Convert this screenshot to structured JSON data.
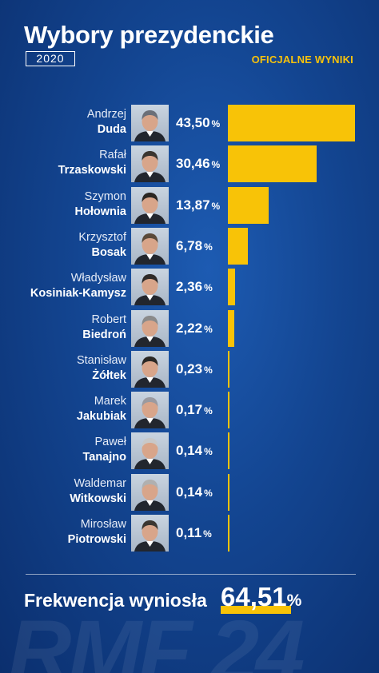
{
  "header": {
    "title": "Wybory prezydenckie",
    "year": "2020",
    "subtitle": "OFICJALNE WYNIKI"
  },
  "chart_data": {
    "type": "bar",
    "orientation": "horizontal",
    "unit": "%",
    "bar_color": "#f8c307",
    "xlim": [
      0,
      43.5
    ],
    "categories": [
      {
        "first": "Andrzej",
        "last": "Duda",
        "value": 43.5,
        "label": "43,50"
      },
      {
        "first": "Rafał",
        "last": "Trzaskowski",
        "value": 30.46,
        "label": "30,46"
      },
      {
        "first": "Szymon",
        "last": "Hołownia",
        "value": 13.87,
        "label": "13,87"
      },
      {
        "first": "Krzysztof",
        "last": "Bosak",
        "value": 6.78,
        "label": "6,78"
      },
      {
        "first": "Władysław",
        "last": "Kosiniak-Kamysz",
        "value": 2.36,
        "label": "2,36"
      },
      {
        "first": "Robert",
        "last": "Biedroń",
        "value": 2.22,
        "label": "2,22"
      },
      {
        "first": "Stanisław",
        "last": "Żółtek",
        "value": 0.23,
        "label": "0,23"
      },
      {
        "first": "Marek",
        "last": "Jakubiak",
        "value": 0.17,
        "label": "0,17"
      },
      {
        "first": "Paweł",
        "last": "Tanajno",
        "value": 0.14,
        "label": "0,14"
      },
      {
        "first": "Waldemar",
        "last": "Witkowski",
        "value": 0.14,
        "label": "0,14"
      },
      {
        "first": "Mirosław",
        "last": "Piotrowski",
        "value": 0.11,
        "label": "0,11"
      }
    ]
  },
  "footer": {
    "turnout_label": "Frekwencja wyniosła",
    "turnout_value": "64,51",
    "turnout_unit": "%",
    "watermark": "RMF 24"
  },
  "colors": {
    "accent": "#f8c307",
    "background": "#134591"
  }
}
